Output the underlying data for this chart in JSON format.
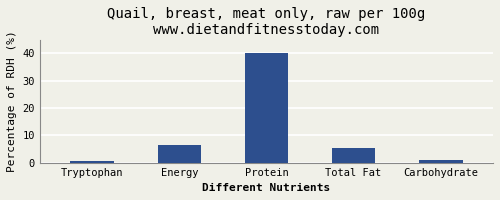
{
  "title": "Quail, breast, meat only, raw per 100g",
  "subtitle": "www.dietandfitnesstoday.com",
  "xlabel": "Different Nutrients",
  "ylabel": "Percentage of RDH (%)",
  "categories": [
    "Tryptophan",
    "Energy",
    "Protein",
    "Total Fat",
    "Carbohydrate"
  ],
  "values": [
    0.5,
    6.5,
    40,
    5.5,
    1.0
  ],
  "bar_color": "#2d4f8e",
  "ylim": [
    0,
    45
  ],
  "yticks": [
    0,
    10,
    20,
    30,
    40
  ],
  "bg_color": "#f0f0e8",
  "grid_color": "#ffffff",
  "title_fontsize": 10,
  "subtitle_fontsize": 8,
  "label_fontsize": 8,
  "tick_fontsize": 7.5
}
